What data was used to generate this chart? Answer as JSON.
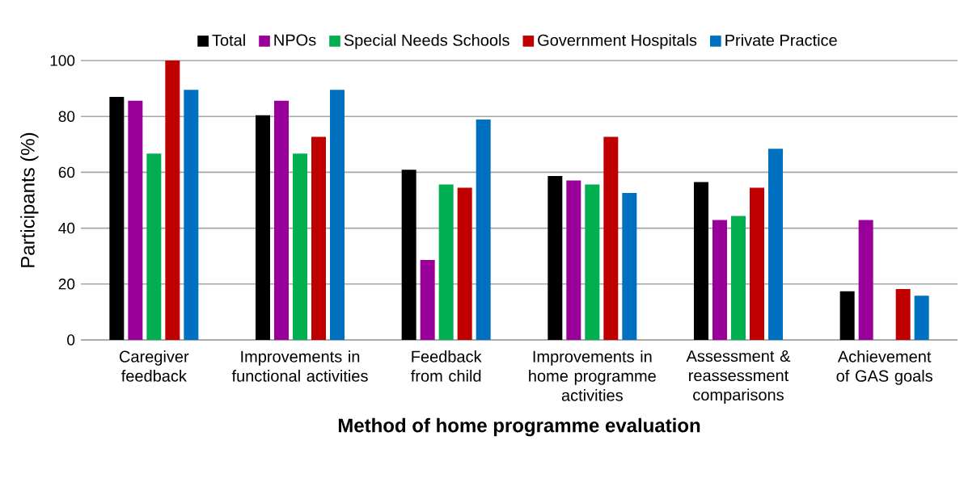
{
  "chart_data": {
    "type": "bar",
    "xlabel": "Method of home programme evaluation",
    "ylabel": "Participants (%)",
    "categories": [
      "Caregiver feedback",
      "Improvements in functional activities",
      "Feedback from child",
      "Improvements in home programme activities",
      "Assessment & reassessment comparisons",
      "Achievement of GAS goals"
    ],
    "series": [
      {
        "name": "Total",
        "color": "#000000",
        "values": [
          87.0,
          80.4,
          60.9,
          58.7,
          56.5,
          17.4
        ]
      },
      {
        "name": "NPOs",
        "color": "#990099",
        "values": [
          85.7,
          85.7,
          28.6,
          57.1,
          42.9,
          42.9
        ]
      },
      {
        "name": "Special Needs Schools",
        "color": "#00b050",
        "values": [
          66.7,
          66.7,
          55.6,
          55.6,
          44.4,
          0
        ]
      },
      {
        "name": "Government Hospitals",
        "color": "#c00000",
        "values": [
          100,
          72.7,
          54.5,
          72.7,
          54.5,
          18.2
        ]
      },
      {
        "name": "Private Practice",
        "color": "#0070c0",
        "values": [
          89.5,
          89.5,
          78.9,
          52.6,
          68.4,
          15.8
        ]
      }
    ],
    "ylim": [
      0,
      100
    ],
    "yticks": [
      0,
      20,
      40,
      60,
      80,
      100
    ],
    "grid": "y",
    "legend": "top"
  }
}
